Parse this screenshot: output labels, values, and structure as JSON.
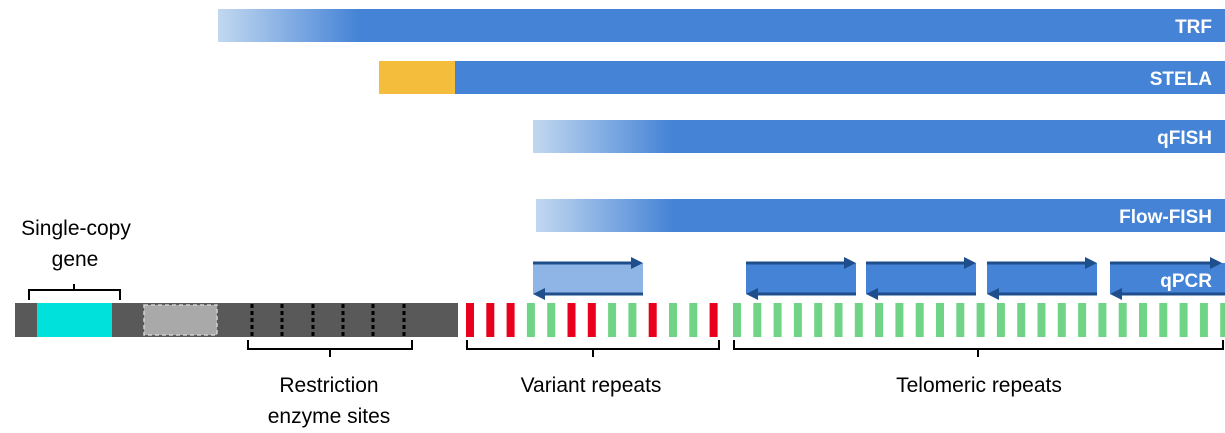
{
  "methods": {
    "trf": "TRF",
    "stela": "STELA",
    "qfish": "qFISH",
    "flowfish": "Flow-FISH",
    "qpcr": "qPCR"
  },
  "labels": {
    "single_copy_gene_line1": "Single-copy",
    "single_copy_gene_line2": "gene",
    "restriction_line1": "Restriction",
    "restriction_line2": "enzyme sites",
    "variant_repeats": "Variant repeats",
    "telomeric_repeats": "Telomeric repeats"
  },
  "colors": {
    "bar_blue": "#4583d6",
    "bar_fade": "#c2d8f0",
    "stela_orange": "#f5bd3c",
    "chromosome": "#595959",
    "gene_cyan": "#00e1dc",
    "gray_box": "#a9a9a9",
    "repeat_green": "#70d486",
    "repeat_red": "#e8001c",
    "arrow_navy": "#1f4e8c",
    "primer_light": "#8fb4e6"
  }
}
